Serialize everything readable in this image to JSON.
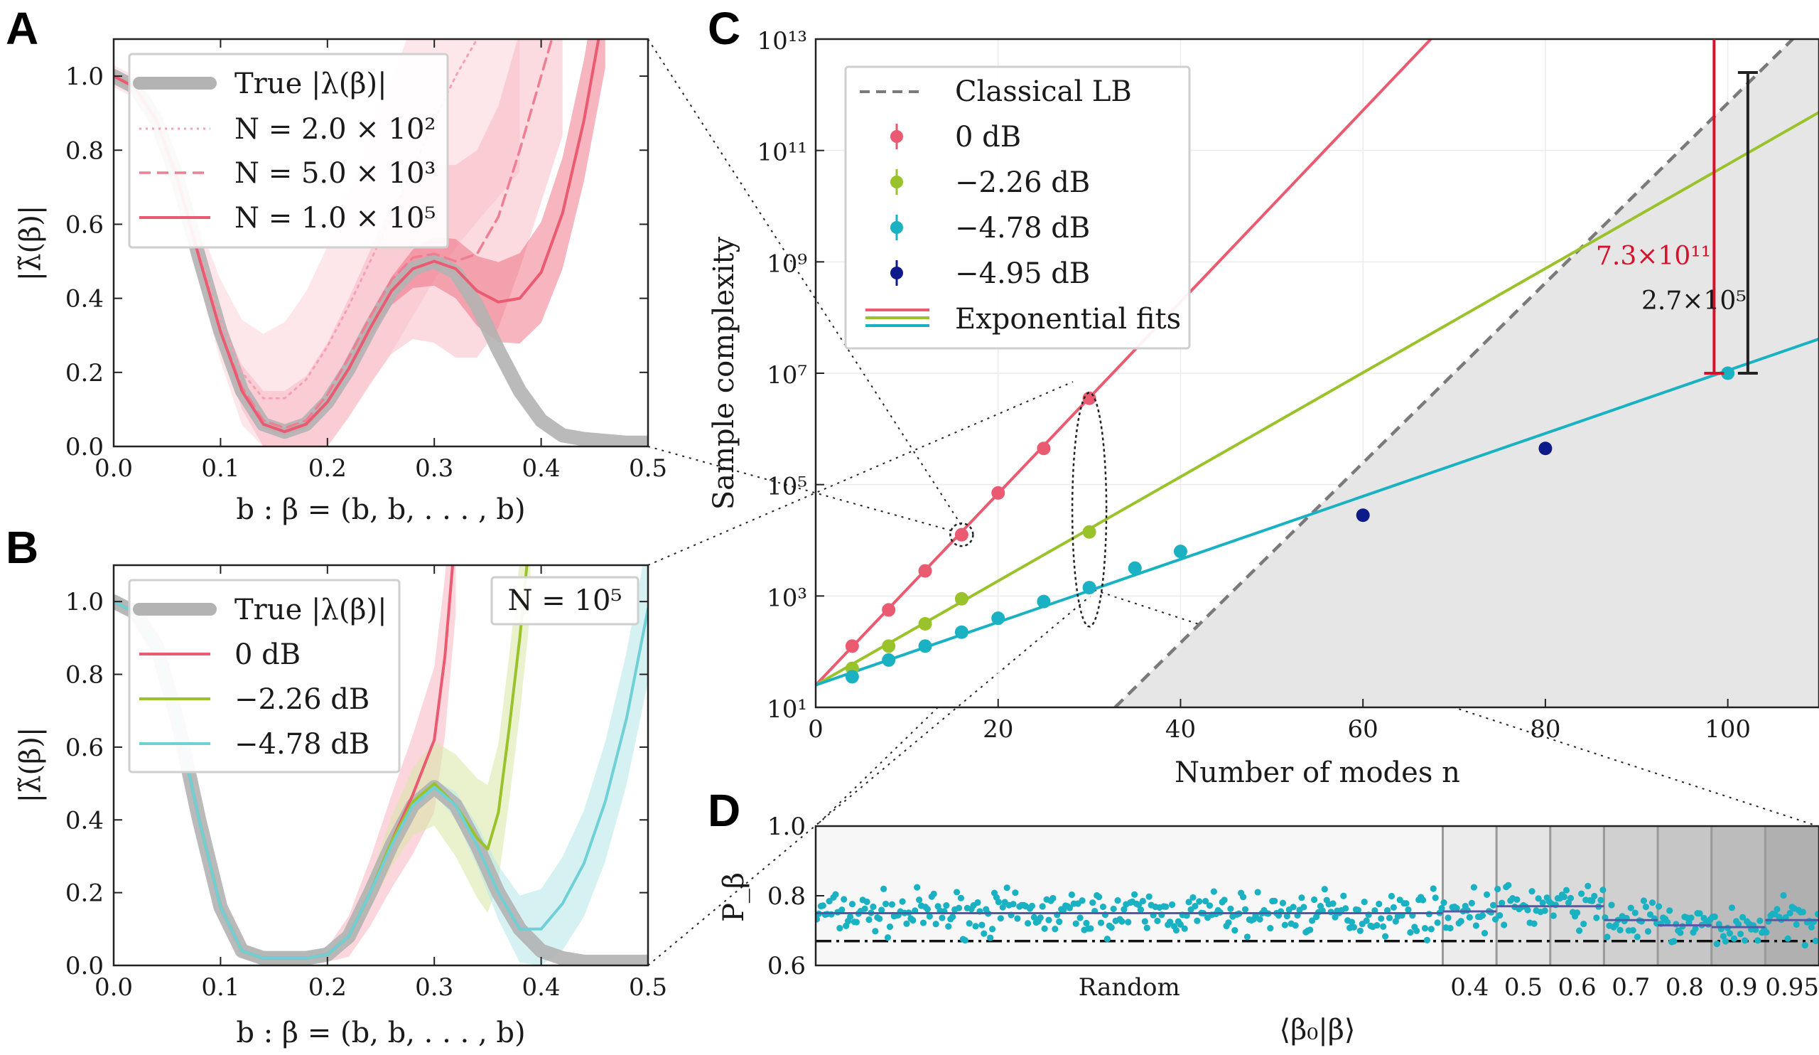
{
  "panels": {
    "A": {
      "letter": "A"
    },
    "B": {
      "letter": "B"
    },
    "C": {
      "letter": "C"
    },
    "D": {
      "letter": "D"
    }
  },
  "colors": {
    "true": "#b3b3b3",
    "red": "#ea5a70",
    "green": "#9ac22a",
    "cyan": "#1ab2c2",
    "navy": "#0d1a8a",
    "gap_red": "#d8102c",
    "classical": "#7a7a7a",
    "shade": "#e6e6e6",
    "purple": "#5856a6"
  },
  "chart_data": [
    {
      "id": "A",
      "type": "line",
      "xlabel": "b :  β = (b, b, . . . , b)",
      "ylabel": "|λ̃(β)|",
      "xlim": [
        0,
        0.5
      ],
      "ylim": [
        0,
        1.1
      ],
      "xticks": [
        "0.0",
        "0.1",
        "0.2",
        "0.3",
        "0.4",
        "0.5"
      ],
      "yticks": [
        "0.0",
        "0.2",
        "0.4",
        "0.6",
        "0.8",
        "1.0"
      ],
      "legend": [
        {
          "label": "True |λ(β)|",
          "style": "thick-gray"
        },
        {
          "label": "N = 2.0 × 10²",
          "style": "dotted"
        },
        {
          "label": "N = 5.0 × 10³",
          "style": "dashed"
        },
        {
          "label": "N = 1.0 × 10⁵",
          "style": "solid"
        }
      ],
      "series": [
        {
          "name": "True |λ(β)|",
          "x": [
            0,
            0.02,
            0.04,
            0.06,
            0.08,
            0.1,
            0.12,
            0.14,
            0.16,
            0.18,
            0.2,
            0.22,
            0.24,
            0.26,
            0.28,
            0.3,
            0.32,
            0.34,
            0.36,
            0.38,
            0.4,
            0.42,
            0.44,
            0.46,
            0.48,
            0.5
          ],
          "y": [
            1.0,
            0.97,
            0.88,
            0.72,
            0.51,
            0.31,
            0.15,
            0.06,
            0.04,
            0.06,
            0.12,
            0.21,
            0.32,
            0.42,
            0.48,
            0.5,
            0.47,
            0.38,
            0.26,
            0.15,
            0.07,
            0.03,
            0.02,
            0.015,
            0.01,
            0.01
          ]
        },
        {
          "name": "N = 2.0 × 10²",
          "x": [
            0,
            0.02,
            0.04,
            0.06,
            0.08,
            0.1,
            0.12,
            0.14,
            0.16,
            0.18,
            0.2,
            0.22,
            0.24,
            0.26,
            0.28,
            0.3,
            0.32,
            0.34,
            0.36,
            0.38
          ],
          "y": [
            1.0,
            0.97,
            0.88,
            0.72,
            0.52,
            0.34,
            0.2,
            0.13,
            0.13,
            0.18,
            0.27,
            0.38,
            0.5,
            0.62,
            0.75,
            0.88,
            1.0,
            1.1,
            1.2,
            1.3
          ]
        },
        {
          "name": "N = 5.0 × 10³",
          "x": [
            0,
            0.02,
            0.04,
            0.06,
            0.08,
            0.1,
            0.12,
            0.14,
            0.16,
            0.18,
            0.2,
            0.22,
            0.24,
            0.26,
            0.28,
            0.3,
            0.32,
            0.34,
            0.36,
            0.38,
            0.4,
            0.42
          ],
          "y": [
            1.0,
            0.97,
            0.88,
            0.72,
            0.51,
            0.31,
            0.16,
            0.07,
            0.05,
            0.07,
            0.14,
            0.24,
            0.35,
            0.45,
            0.51,
            0.52,
            0.5,
            0.52,
            0.62,
            0.8,
            1.0,
            1.2
          ]
        },
        {
          "name": "N = 1.0 × 10⁵",
          "x": [
            0,
            0.02,
            0.04,
            0.06,
            0.08,
            0.1,
            0.12,
            0.14,
            0.16,
            0.18,
            0.2,
            0.22,
            0.24,
            0.26,
            0.28,
            0.3,
            0.32,
            0.34,
            0.36,
            0.38,
            0.4,
            0.42,
            0.44,
            0.46
          ],
          "y": [
            1.0,
            0.97,
            0.88,
            0.72,
            0.51,
            0.31,
            0.15,
            0.06,
            0.04,
            0.06,
            0.12,
            0.21,
            0.32,
            0.42,
            0.48,
            0.5,
            0.48,
            0.42,
            0.39,
            0.4,
            0.47,
            0.63,
            0.88,
            1.2
          ]
        }
      ]
    },
    {
      "id": "B",
      "type": "line",
      "annotation": "N = 10⁵",
      "xlabel": "b :  β = (b, b, . . . , b)",
      "ylabel": "|λ̃(β)|",
      "xlim": [
        0,
        0.5
      ],
      "ylim": [
        0,
        1.1
      ],
      "xticks": [
        "0.0",
        "0.1",
        "0.2",
        "0.3",
        "0.4",
        "0.5"
      ],
      "yticks": [
        "0.0",
        "0.2",
        "0.4",
        "0.6",
        "0.8",
        "1.0"
      ],
      "legend": [
        {
          "label": "True |λ(β)|",
          "style": "thick-gray"
        },
        {
          "label": "0 dB",
          "style": "red"
        },
        {
          "label": "−2.26 dB",
          "style": "green"
        },
        {
          "label": "−4.78 dB",
          "style": "cyan"
        }
      ],
      "series": [
        {
          "name": "True |λ(β)|",
          "x": [
            0,
            0.02,
            0.04,
            0.06,
            0.08,
            0.1,
            0.12,
            0.14,
            0.16,
            0.18,
            0.2,
            0.22,
            0.24,
            0.26,
            0.28,
            0.3,
            0.32,
            0.34,
            0.36,
            0.38,
            0.4,
            0.42,
            0.44,
            0.46,
            0.48,
            0.5
          ],
          "y": [
            1.0,
            0.97,
            0.88,
            0.67,
            0.4,
            0.16,
            0.04,
            0.02,
            0.02,
            0.02,
            0.03,
            0.08,
            0.2,
            0.33,
            0.44,
            0.49,
            0.44,
            0.33,
            0.2,
            0.1,
            0.04,
            0.02,
            0.01,
            0.01,
            0.01,
            0.01
          ]
        },
        {
          "name": "0 dB",
          "x": [
            0,
            0.02,
            0.04,
            0.06,
            0.08,
            0.1,
            0.12,
            0.14,
            0.16,
            0.18,
            0.2,
            0.22,
            0.24,
            0.26,
            0.28,
            0.3,
            0.31,
            0.32
          ],
          "y": [
            1.0,
            0.97,
            0.88,
            0.67,
            0.4,
            0.16,
            0.04,
            0.02,
            0.02,
            0.02,
            0.03,
            0.08,
            0.2,
            0.34,
            0.47,
            0.62,
            0.85,
            1.2
          ]
        },
        {
          "name": "−2.26 dB",
          "x": [
            0,
            0.02,
            0.04,
            0.06,
            0.08,
            0.1,
            0.12,
            0.14,
            0.16,
            0.18,
            0.2,
            0.22,
            0.24,
            0.26,
            0.28,
            0.3,
            0.32,
            0.34,
            0.35,
            0.36,
            0.37,
            0.38,
            0.39
          ],
          "y": [
            1.0,
            0.97,
            0.88,
            0.67,
            0.4,
            0.16,
            0.04,
            0.02,
            0.02,
            0.02,
            0.03,
            0.08,
            0.2,
            0.34,
            0.45,
            0.5,
            0.44,
            0.35,
            0.32,
            0.42,
            0.65,
            0.9,
            1.2
          ]
        },
        {
          "name": "−4.78 dB",
          "x": [
            0,
            0.02,
            0.04,
            0.06,
            0.08,
            0.1,
            0.12,
            0.14,
            0.16,
            0.18,
            0.2,
            0.22,
            0.24,
            0.26,
            0.28,
            0.3,
            0.32,
            0.34,
            0.36,
            0.38,
            0.4,
            0.42,
            0.44,
            0.46,
            0.48,
            0.5
          ],
          "y": [
            1.0,
            0.97,
            0.88,
            0.67,
            0.4,
            0.16,
            0.04,
            0.02,
            0.02,
            0.02,
            0.03,
            0.08,
            0.2,
            0.33,
            0.44,
            0.49,
            0.44,
            0.33,
            0.2,
            0.1,
            0.1,
            0.17,
            0.28,
            0.45,
            0.68,
            0.98
          ]
        }
      ]
    },
    {
      "id": "C",
      "type": "scatter",
      "xlabel": "Number of modes n",
      "ylabel": "Sample complexity",
      "xlim": [
        0,
        110
      ],
      "ylim_log10": [
        1,
        13
      ],
      "xticks": [
        "0",
        "20",
        "40",
        "60",
        "80",
        "100"
      ],
      "yticks": [
        "10¹",
        "10³",
        "10⁵",
        "10⁷",
        "10⁹",
        "10¹¹",
        "10¹³"
      ],
      "legend": [
        {
          "label": "Classical LB",
          "style": "dashed-gray"
        },
        {
          "label": "0 dB",
          "style": "red-marker"
        },
        {
          "label": "−2.26 dB",
          "style": "green-marker"
        },
        {
          "label": "−4.78 dB",
          "style": "cyan-marker"
        },
        {
          "label": "−4.95 dB",
          "style": "navy-marker"
        },
        {
          "label": "Exponential fits",
          "style": "lines"
        }
      ],
      "series": [
        {
          "name": "0 dB",
          "x": [
            4,
            8,
            12,
            16,
            20,
            25,
            30
          ],
          "log10_y": [
            2.1,
            2.75,
            3.45,
            4.1,
            4.85,
            5.65,
            6.55
          ]
        },
        {
          "name": "−2.26 dB",
          "x": [
            4,
            8,
            12,
            16,
            30
          ],
          "log10_y": [
            1.7,
            2.1,
            2.5,
            2.95,
            4.15
          ]
        },
        {
          "name": "−4.78 dB",
          "x": [
            4,
            8,
            12,
            16,
            20,
            25,
            30,
            35,
            40,
            100
          ],
          "log10_y": [
            1.55,
            1.85,
            2.1,
            2.35,
            2.6,
            2.9,
            3.15,
            3.5,
            3.8,
            7.0
          ]
        },
        {
          "name": "−4.95 dB",
          "x": [
            60,
            80
          ],
          "log10_y": [
            4.45,
            5.65
          ]
        }
      ],
      "fits": [
        {
          "name": "0 dB fit",
          "intercept_log10": 1.4,
          "slope_log10": 0.172
        },
        {
          "name": "−2.26 dB fit",
          "intercept_log10": 1.4,
          "slope_log10": 0.0935
        },
        {
          "name": "−4.78 dB fit",
          "intercept_log10": 1.4,
          "slope_log10": 0.0565
        },
        {
          "name": "Classical LB",
          "intercept_log10": -4.3,
          "slope_log10": 0.1615
        }
      ],
      "annotations": [
        {
          "text": "7.3×10¹¹",
          "color": "red"
        },
        {
          "text": "2.7×10⁵",
          "color": "black"
        }
      ]
    },
    {
      "id": "D",
      "type": "scatter",
      "xlabel": "⟨β₀|β⟩",
      "ylabel": "P_β",
      "ylim": [
        0.6,
        1.0
      ],
      "yticks": [
        "0.6",
        "0.8",
        "1.0"
      ],
      "xticks": [
        "Random",
        "0.4",
        "0.5",
        "0.6",
        "0.7",
        "0.8",
        "0.9",
        "0.95"
      ],
      "segments": [
        {
          "label": "Random",
          "mean": 0.75,
          "points": 300
        },
        {
          "label": "0.4",
          "mean": 0.755,
          "points": 25
        },
        {
          "label": "0.5",
          "mean": 0.77,
          "points": 25
        },
        {
          "label": "0.6",
          "mean": 0.77,
          "points": 25
        },
        {
          "label": "0.7",
          "mean": 0.73,
          "points": 25
        },
        {
          "label": "0.8",
          "mean": 0.715,
          "points": 25
        },
        {
          "label": "0.9",
          "mean": 0.71,
          "points": 25
        },
        {
          "label": "0.95",
          "mean": 0.73,
          "points": 25
        }
      ],
      "threshold": 0.67
    }
  ]
}
